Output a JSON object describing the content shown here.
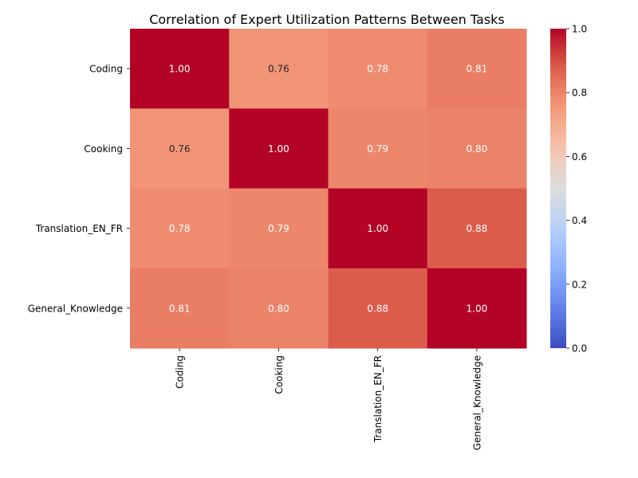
{
  "chart_data": {
    "type": "heatmap",
    "title": "Correlation of Expert Utilization Patterns Between Tasks",
    "rows": [
      "Coding",
      "Cooking",
      "Translation_EN_FR",
      "General_Knowledge"
    ],
    "columns": [
      "Coding",
      "Cooking",
      "Translation_EN_FR",
      "General_Knowledge"
    ],
    "values": [
      [
        1.0,
        0.76,
        0.78,
        0.81
      ],
      [
        0.76,
        1.0,
        0.79,
        0.8
      ],
      [
        0.78,
        0.79,
        1.0,
        0.88
      ],
      [
        0.81,
        0.8,
        0.88,
        1.0
      ]
    ],
    "value_format": "2 decimals",
    "colormap": "coolwarm",
    "colorbar": {
      "range": [
        0.0,
        1.0
      ],
      "ticks": [
        "0.0",
        "0.2",
        "0.4",
        "0.6",
        "0.8",
        "1.0"
      ],
      "position": "right"
    },
    "colors": {
      "low": "#3b4cc0",
      "mid": "#dddddd",
      "high": "#b40426"
    }
  }
}
